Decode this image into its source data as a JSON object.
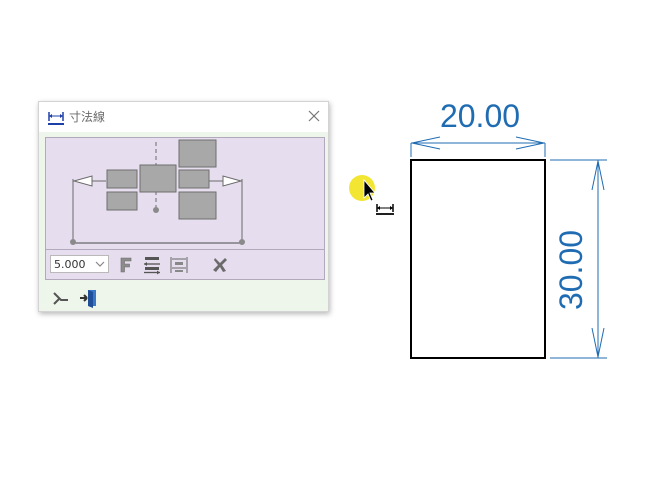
{
  "dialog": {
    "title": "寸法線",
    "value_combo": {
      "value": "5.000"
    }
  },
  "drawing": {
    "horizontal_dimension": "20.00",
    "vertical_dimension": "30.00"
  },
  "colors": {
    "dimension": "#1f6cb3",
    "preview_bg": "#e6ddee",
    "dialog_bg": "#eef5ea",
    "cursor_highlight": "#f2e31c"
  }
}
